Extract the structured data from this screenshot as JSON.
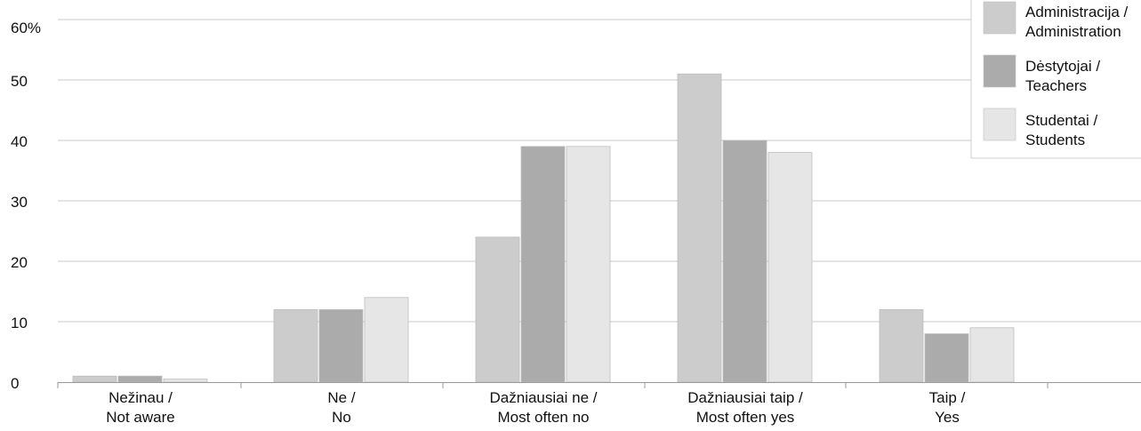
{
  "chart_data": {
    "type": "bar",
    "y_unit_label": "60%",
    "ylim": [
      0,
      60
    ],
    "yticks": [
      0,
      10,
      20,
      30,
      40,
      50
    ],
    "grid": true,
    "legend_position": "top-right",
    "categories": [
      [
        "Nežinau /",
        "Not aware"
      ],
      [
        "Ne /",
        "No"
      ],
      [
        "Dažniausiai ne /",
        "Most often no"
      ],
      [
        "Dažniausiai taip /",
        "Most often yes"
      ],
      [
        "Taip /",
        "Yes"
      ]
    ],
    "series": [
      {
        "name": [
          "Administracija /",
          "Administration"
        ],
        "color": "#cccccc",
        "values": [
          1,
          12,
          24,
          51,
          12
        ]
      },
      {
        "name": [
          "Dėstytojai /",
          "Teachers"
        ],
        "color": "#ababab",
        "values": [
          1,
          12,
          39,
          40,
          8
        ]
      },
      {
        "name": [
          "Studentai /",
          "Students"
        ],
        "color": "#e6e6e6",
        "values": [
          0.5,
          14,
          39,
          38,
          9
        ]
      }
    ]
  }
}
